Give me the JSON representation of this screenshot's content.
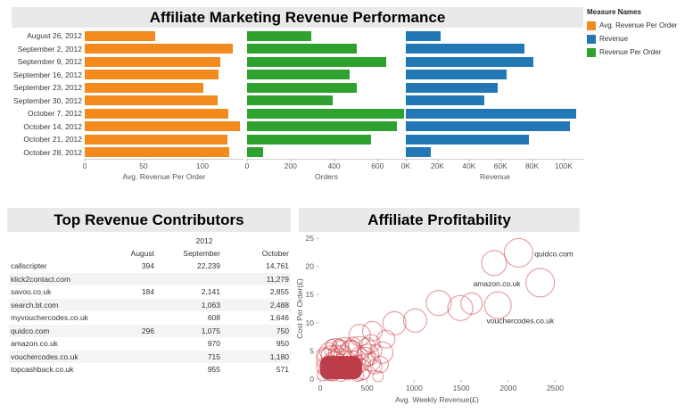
{
  "chart_data": [
    {
      "type": "bar",
      "orientation": "horizontal",
      "title": "Affiliate Marketing Revenue Performance",
      "categories": [
        "August 26, 2012",
        "September 2, 2012",
        "September 9, 2012",
        "September 16, 2012",
        "September 23, 2012",
        "September 30, 2012",
        "October 7, 2012",
        "October 14, 2012",
        "October 21, 2012",
        "October 28, 2012"
      ],
      "legend": {
        "title": "Measure Names",
        "position": "top-right",
        "items": [
          {
            "label": "Avg. Revenue Per Order",
            "color": "#f28a1e"
          },
          {
            "label": "Revenue",
            "color": "#2278b5"
          },
          {
            "label": "Revenue Per Order",
            "color": "#2ea12e"
          }
        ]
      },
      "series": [
        {
          "key": "avg-revenue-per-order",
          "axis_label": "Avg. Revenue Per Order",
          "color": "#f28a1e",
          "xlim": [
            0,
            135
          ],
          "tick_values": [
            0,
            50,
            100
          ],
          "ticks": [
            "0",
            "50",
            "100"
          ],
          "values": [
            60,
            126,
            115,
            114,
            101,
            113,
            122,
            132,
            121,
            123
          ]
        },
        {
          "key": "orders",
          "axis_label": "Orders",
          "color": "#2ea12e",
          "xlim": [
            0,
            730
          ],
          "tick_values": [
            0,
            200,
            400,
            600
          ],
          "ticks": [
            "0",
            "200",
            "400",
            "600"
          ],
          "values": [
            295,
            505,
            640,
            470,
            505,
            395,
            720,
            690,
            570,
            73
          ]
        },
        {
          "key": "revenue",
          "axis_label": "Revenue",
          "color": "#2278b5",
          "xlim": [
            0,
            113000
          ],
          "tick_values": [
            0,
            20000,
            40000,
            60000,
            80000,
            100000
          ],
          "ticks": [
            "0K",
            "20K",
            "40K",
            "60K",
            "80K",
            "100K"
          ],
          "values": [
            22000,
            75000,
            81000,
            64000,
            58000,
            50000,
            108000,
            104000,
            78000,
            16000
          ]
        }
      ]
    },
    {
      "type": "table",
      "title": "Top Revenue Contributors",
      "year_header": "2012",
      "columns": [
        "August",
        "September",
        "October"
      ],
      "rows": [
        {
          "name": "callscripter",
          "values": [
            "394",
            "22,239",
            "14,761"
          ]
        },
        {
          "name": "klick2contact.com",
          "values": [
            "",
            "",
            "11,279"
          ]
        },
        {
          "name": "savoo.co.uk",
          "values": [
            "184",
            "2,141",
            "2,855"
          ]
        },
        {
          "name": "search.bt.com",
          "values": [
            "",
            "1,063",
            "2,488"
          ]
        },
        {
          "name": "myvouchercodes.co.uk",
          "values": [
            "",
            "608",
            "1,646"
          ]
        },
        {
          "name": "quidco.com",
          "values": [
            "296",
            "1,075",
            "750"
          ]
        },
        {
          "name": "amazon.co.uk",
          "values": [
            "",
            "970",
            "950"
          ]
        },
        {
          "name": "vouchercodes.co.uk",
          "values": [
            "",
            "715",
            "1,180"
          ]
        },
        {
          "name": "topcashback.co.uk",
          "values": [
            "",
            "955",
            "571"
          ]
        }
      ]
    },
    {
      "type": "scatter",
      "title": "Affiliate Profitability",
      "xlabel": "Avg. Weekly Revenue(£)",
      "ylabel": "Cost Per Order(£)",
      "xlim": [
        0,
        2720
      ],
      "ylim": [
        0,
        25.8
      ],
      "xticks": [
        0,
        500,
        1000,
        1500,
        2000,
        2500
      ],
      "yticks": [
        0,
        5,
        10,
        15,
        20,
        25
      ],
      "point_color": "#c9353f",
      "blob_color": "#a52232",
      "dense_cluster_blob": {
        "x0": 0,
        "y0": 0,
        "x1": 445,
        "y1": 4.1
      },
      "labels": [
        {
          "text": "quidco.com",
          "x": 2280,
          "y": 22.2,
          "anchor": "start"
        },
        {
          "text": "amazon.co.uk",
          "x": 2130,
          "y": 16.9,
          "anchor": "end"
        },
        {
          "text": "vouchercodes.co.uk",
          "x": 1770,
          "y": 10.4,
          "anchor": "start"
        }
      ],
      "points": [
        [
          35,
          0.8,
          7
        ],
        [
          55,
          2.2,
          10
        ],
        [
          75,
          3.5,
          12
        ],
        [
          95,
          1.2,
          9
        ],
        [
          115,
          4.2,
          11
        ],
        [
          135,
          0.6,
          6
        ],
        [
          150,
          2.8,
          13
        ],
        [
          170,
          4.6,
          9
        ],
        [
          185,
          1.5,
          8
        ],
        [
          205,
          3.2,
          14
        ],
        [
          220,
          0.7,
          7
        ],
        [
          240,
          4.4,
          10
        ],
        [
          255,
          1.9,
          9
        ],
        [
          275,
          3.1,
          12
        ],
        [
          290,
          0.8,
          6
        ],
        [
          310,
          2.3,
          10
        ],
        [
          325,
          4.7,
          13
        ],
        [
          345,
          1.3,
          8
        ],
        [
          360,
          3.5,
          9
        ],
        [
          380,
          2.5,
          11
        ],
        [
          395,
          0.7,
          7
        ],
        [
          415,
          4.1,
          10
        ],
        [
          430,
          1.7,
          12
        ],
        [
          450,
          2.9,
          9
        ],
        [
          465,
          0.9,
          6
        ],
        [
          480,
          3.9,
          11
        ],
        [
          120,
          2,
          14
        ],
        [
          260,
          5,
          15
        ],
        [
          90,
          4.9,
          10
        ],
        [
          160,
          5.3,
          12
        ],
        [
          230,
          5.6,
          8
        ],
        [
          330,
          5.2,
          11
        ],
        [
          420,
          5.5,
          13
        ],
        [
          40,
          4.3,
          8
        ],
        [
          510,
          4.3,
          12
        ],
        [
          545,
          3,
          10
        ],
        [
          580,
          2.2,
          8
        ],
        [
          615,
          0.5,
          6
        ],
        [
          640,
          2.6,
          9
        ],
        [
          660,
          4.7,
          12
        ],
        [
          500,
          5.9,
          9
        ],
        [
          350,
          6.2,
          8
        ],
        [
          200,
          6,
          7
        ],
        [
          120,
          6.1,
          6
        ],
        [
          540,
          6.3,
          10
        ],
        [
          590,
          5,
          7
        ],
        [
          420,
          7.8,
          12
        ],
        [
          555,
          8.5,
          11
        ],
        [
          700,
          7.1,
          10
        ],
        [
          790,
          9.9,
          13
        ],
        [
          1010,
          10.4,
          13
        ],
        [
          1260,
          13.5,
          14
        ],
        [
          1490,
          12.6,
          14
        ],
        [
          1610,
          13.4,
          12
        ],
        [
          1890,
          13.1,
          15
        ],
        [
          1850,
          20.6,
          14
        ],
        [
          2110,
          22.4,
          16
        ],
        [
          2340,
          17.1,
          16
        ]
      ]
    }
  ]
}
